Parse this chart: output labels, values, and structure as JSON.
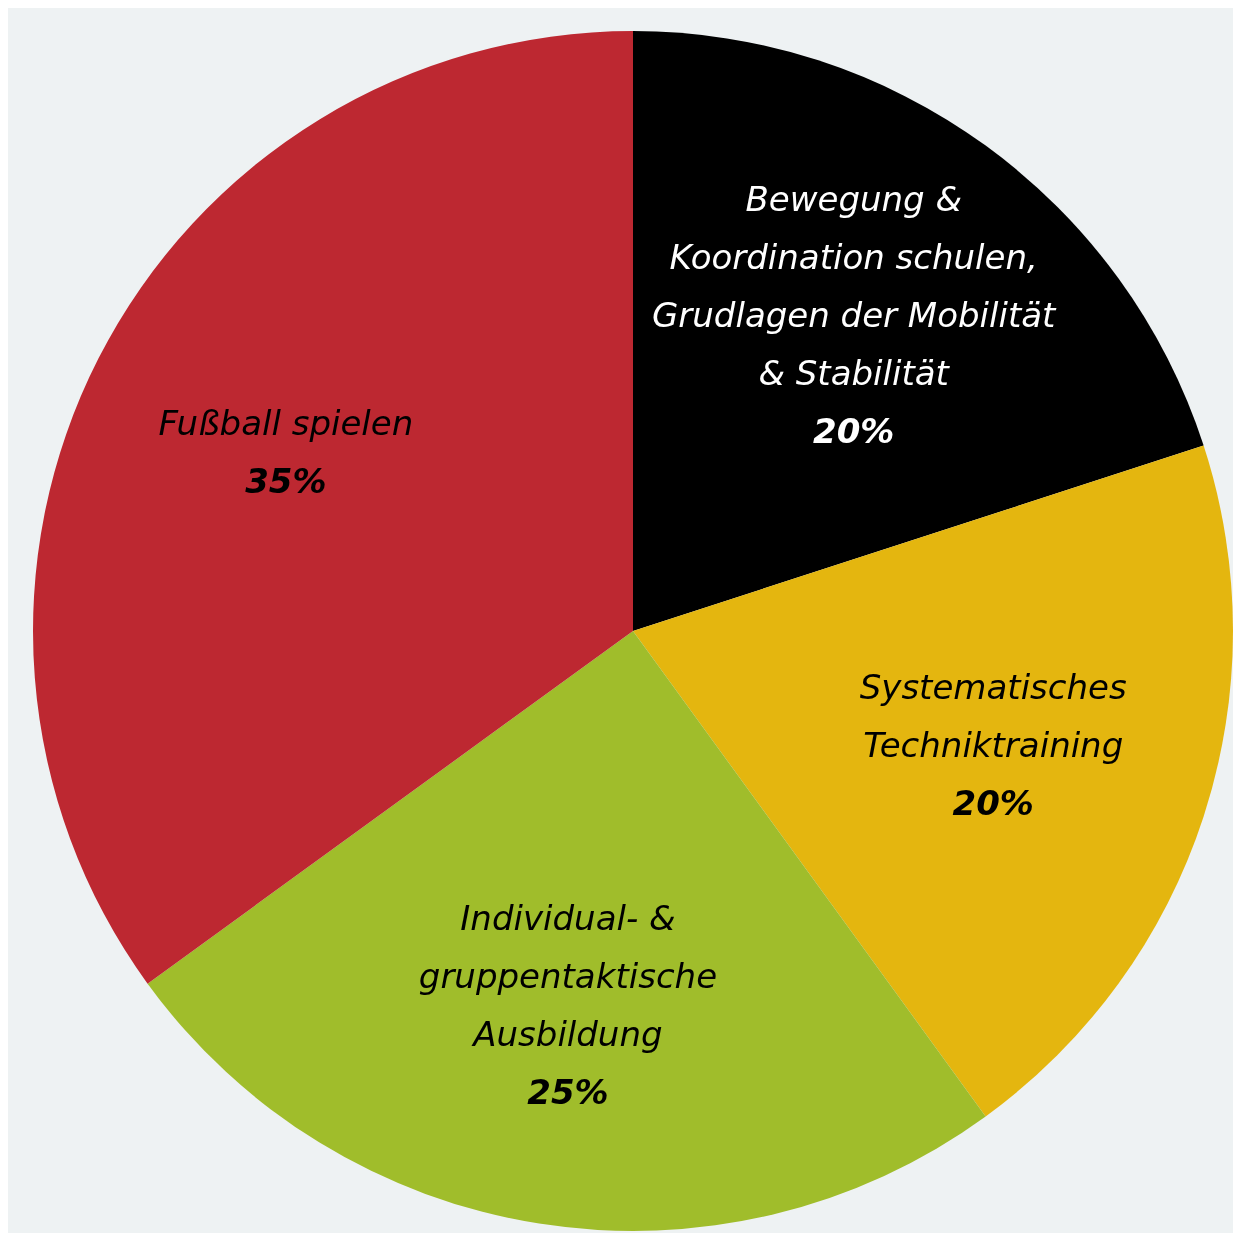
{
  "chart_data": {
    "type": "pie",
    "categories": [
      "Bewegung &\nKoordination schulen,\nGrudlagen der Mobilität\n& Stabilität",
      "Systematisches\nTechniktraining",
      "Individual- &\ngruppentaktische\nAusbildung",
      "Fußball spielen"
    ],
    "values": [
      20,
      20,
      25,
      35
    ],
    "value_labels": [
      "20%",
      "20%",
      "25%",
      "35%"
    ],
    "colors": [
      "#000000",
      "#e4b60f",
      "#a0bd2b",
      "#bd2831"
    ],
    "legend": false
  }
}
